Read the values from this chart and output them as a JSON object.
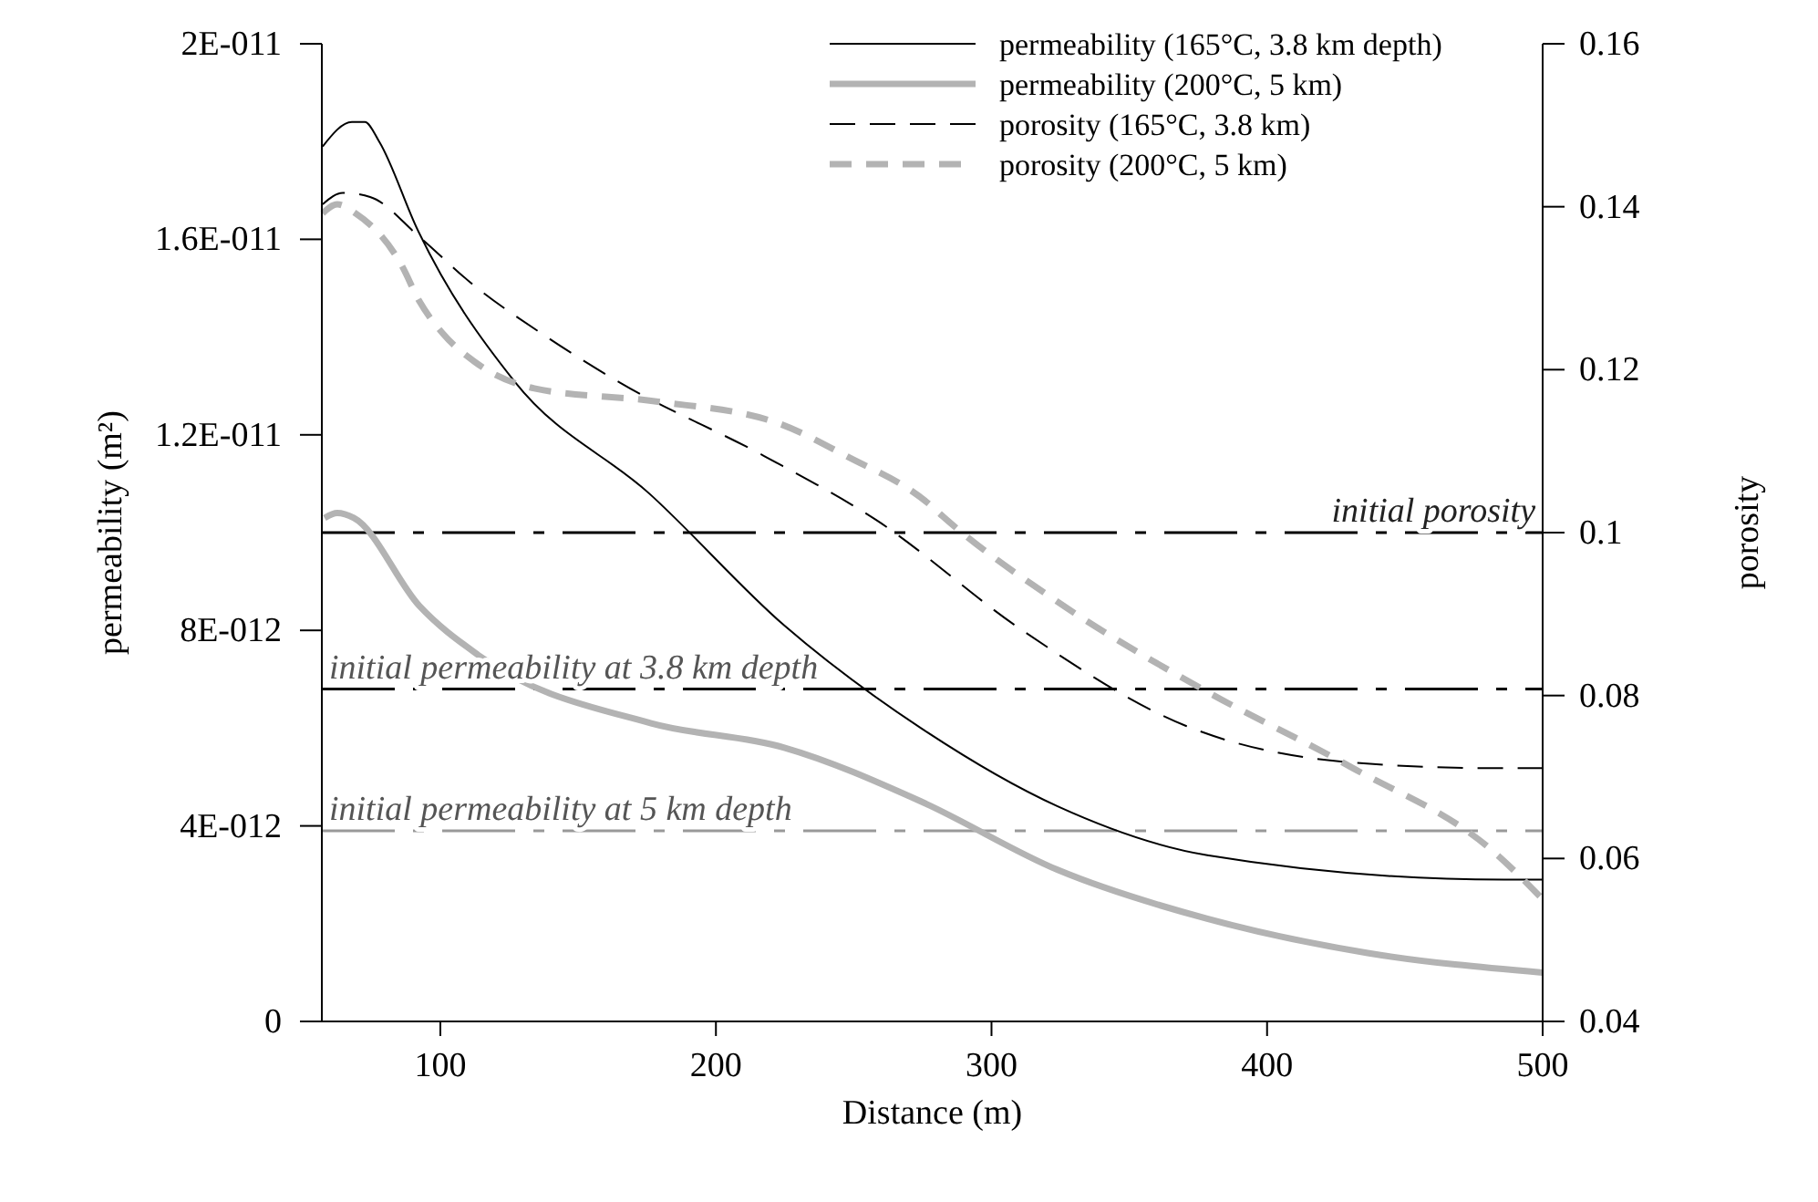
{
  "chart_data": {
    "type": "line",
    "xlabel": "Distance (m)",
    "ylabel": "permeability (m²)",
    "y2label": "porosity",
    "xlim": [
      57,
      500
    ],
    "xticks": [
      100,
      200,
      300,
      400,
      500
    ],
    "ylim": [
      0,
      2e-11
    ],
    "yticks": [
      {
        "value": 0,
        "label": "0"
      },
      {
        "value": 4e-12,
        "label": "4E-012"
      },
      {
        "value": 8e-12,
        "label": "8E-012"
      },
      {
        "value": 1.2e-11,
        "label": "1.2E-011"
      },
      {
        "value": 1.6e-11,
        "label": "1.6E-011"
      },
      {
        "value": 2e-11,
        "label": "2E-011"
      }
    ],
    "y2lim": [
      0.04,
      0.16
    ],
    "y2ticks": [
      0.04,
      0.06,
      0.08,
      0.1,
      0.12,
      0.14,
      0.16
    ],
    "legend": "top right",
    "grid": false,
    "series": [
      {
        "name": "permeability (165°C, 3.8 km depth)",
        "color": "#000000",
        "line_style": "solid",
        "x": [
          57.3,
          67.9,
          72.6,
          77.8,
          91.7,
          126.8,
          175.8,
          224.8,
          274.4,
          324,
          378.3,
          486,
          500
        ],
        "values": [
          1.79e-11,
          1.84e-11,
          1.84e-11,
          1.8e-11,
          1.62e-11,
          1.31e-11,
          1.08e-11,
          8.1e-12,
          6e-12,
          4.4e-12,
          3.4e-12,
          2.9e-12,
          2.9e-12
        ]
      },
      {
        "name": "permeability (200°C, 5 km)",
        "color": "#b3b3b3",
        "line_style": "solid",
        "x": [
          58,
          62.6,
          68.6,
          92.4,
          113.6,
          176.5,
          224.8,
          274.4,
          324,
          378.3,
          436.5,
          500
        ],
        "values": [
          1.03e-11,
          1.04e-11,
          1.03e-11,
          8.5e-12,
          7.5e-12,
          6.1e-12,
          5.6e-12,
          4.5e-12,
          3.1e-12,
          2.1e-12,
          1.4e-12,
          1e-12
        ]
      },
      {
        "name": "porosity (165°C, 3.8 km)",
        "color": "#000000",
        "line_style": "dashed",
        "axis": "y2",
        "x": [
          57.3,
          64.6,
          74.5,
          92.4,
          110.9,
          138.7,
          165.2,
          217.5,
          257.9,
          310.8,
          370.4,
          430,
          479.6,
          500
        ],
        "values": [
          0.1403,
          0.1417,
          0.1412,
          0.1363,
          0.1307,
          0.124,
          0.1184,
          0.1094,
          0.1016,
          0.0881,
          0.0763,
          0.0718,
          0.0711,
          0.0711
        ]
      },
      {
        "name": "porosity (200°C, 5 km)",
        "color": "#b3b3b3",
        "line_style": "dashed",
        "axis": "y2",
        "x": [
          57.3,
          62.6,
          69.2,
          85.8,
          92.4,
          101,
          112.3,
          134.1,
          178.4,
          222.8,
          247.3,
          277.7,
          282.3,
          324,
          377,
          430,
          483,
          500
        ],
        "values": [
          0.1392,
          0.1403,
          0.1392,
          0.1329,
          0.1284,
          0.1244,
          0.121,
          0.1177,
          0.1161,
          0.1134,
          0.1094,
          0.1034,
          0.102,
          0.0915,
          0.0807,
          0.0713,
          0.0606,
          0.055
        ]
      }
    ],
    "ref_lines": [
      {
        "axis": "y2",
        "value": 0.1,
        "label": "initial porosity",
        "color": "#000000",
        "line_style": "dashed"
      },
      {
        "axis": "y",
        "value": 6.8e-12,
        "label": "initial permeability at 3.8 km depth",
        "color": "#000000",
        "line_style": "dashed"
      },
      {
        "axis": "y",
        "value": 3.9e-12,
        "label": "initial permeability at 5 km depth",
        "color": "#999999",
        "line_style": "dashed"
      }
    ]
  }
}
